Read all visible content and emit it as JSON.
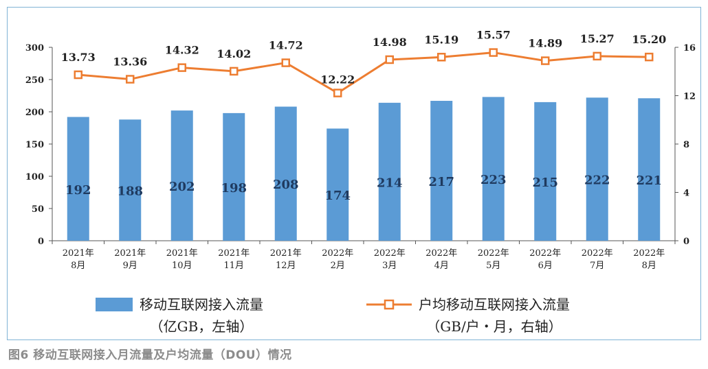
{
  "chart_data": {
    "type": "bar+line",
    "categories": [
      [
        "2021年",
        "8月"
      ],
      [
        "2021年",
        "9月"
      ],
      [
        "2021年",
        "10月"
      ],
      [
        "2021年",
        "11月"
      ],
      [
        "2021年",
        "12月"
      ],
      [
        "2022年",
        "2月"
      ],
      [
        "2022年",
        "3月"
      ],
      [
        "2022年",
        "4月"
      ],
      [
        "2022年",
        "5月"
      ],
      [
        "2022年",
        "6月"
      ],
      [
        "2022年",
        "7月"
      ],
      [
        "2022年",
        "8月"
      ]
    ],
    "series": [
      {
        "name": "移动互联网接入流量",
        "unit_note": "（亿GB，左轴）",
        "type": "bar",
        "axis": "left",
        "color": "#5b9bd5",
        "values": [
          192,
          188,
          202,
          198,
          208,
          174,
          214,
          217,
          223,
          215,
          222,
          221
        ]
      },
      {
        "name": "户均移动互联网接入流量",
        "unit_note": "（GB/户・月，右轴）",
        "type": "line",
        "axis": "right",
        "color": "#ed7d31",
        "values": [
          13.73,
          13.36,
          14.32,
          14.02,
          14.72,
          12.22,
          14.98,
          15.19,
          15.57,
          14.89,
          15.27,
          15.2
        ],
        "labels": [
          "13.73",
          "13.36",
          "14.32",
          "14.02",
          "14.72",
          "12.22",
          "14.98",
          "15.19",
          "15.57",
          "14.89",
          "15.27",
          "15.20"
        ]
      }
    ],
    "y_left": {
      "min": 0,
      "max": 300,
      "ticks": [
        0,
        50,
        100,
        150,
        200,
        250,
        300
      ]
    },
    "y_right": {
      "min": 0,
      "max": 16,
      "ticks": [
        0,
        4,
        8,
        12,
        16
      ]
    },
    "grid": false,
    "legend_position": "bottom"
  },
  "caption": "图6 移动互联网接入月流量及户均流量（DOU）情况"
}
